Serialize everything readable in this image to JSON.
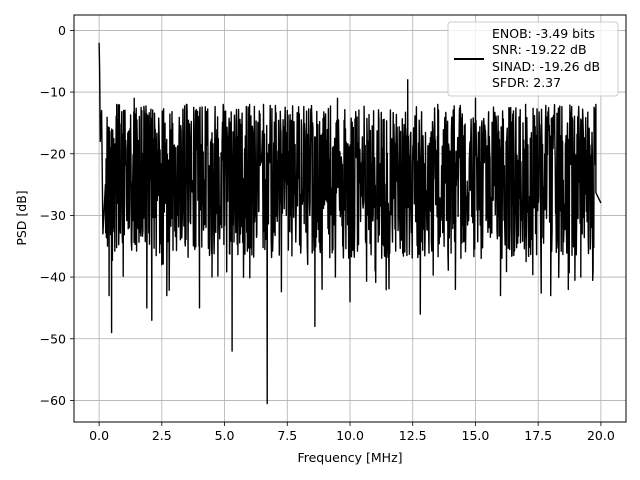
{
  "chart_data": {
    "type": "line",
    "title": "",
    "xlabel": "Frequency [MHz]",
    "ylabel": "PSD [dB]",
    "xlim": [
      -1.0,
      21.0
    ],
    "ylim": [
      -63.5,
      2.5
    ],
    "x_ticks": [
      0.0,
      2.5,
      5.0,
      7.5,
      10.0,
      12.5,
      15.0,
      17.5,
      20.0
    ],
    "x_tick_labels": [
      "0.0",
      "2.5",
      "5.0",
      "7.5",
      "10.0",
      "12.5",
      "15.0",
      "17.5",
      "20.0"
    ],
    "y_ticks": [
      0,
      -10,
      -20,
      -30,
      -40,
      -50,
      -60
    ],
    "y_tick_labels": [
      "0",
      "−10",
      "−20",
      "−30",
      "−40",
      "−50",
      "−60"
    ],
    "grid": true,
    "legend_position": "top-right",
    "series": [
      {
        "name": "",
        "color": "#000000",
        "x": [
          0.0,
          0.02,
          0.05,
          0.1,
          0.15,
          0.25,
          0.4,
          0.45,
          0.5,
          0.7,
          1.0,
          1.4,
          1.9,
          2.1,
          2.7,
          3.5,
          4.0,
          4.5,
          5.3,
          6.0,
          6.7,
          7.5,
          8.6,
          9.5,
          10.0,
          11.0,
          12.3,
          12.8,
          13.5,
          14.2,
          15.0,
          16.0,
          17.0,
          18.0,
          18.7,
          19.2,
          19.8,
          20.0
        ],
        "y": [
          -2,
          -6,
          -18,
          -13,
          -33,
          -25,
          -43,
          -20,
          -49,
          -12,
          -24,
          -11,
          -45,
          -47,
          -43,
          -12,
          -45,
          -40,
          -52,
          -12,
          -60.5,
          -13,
          -48,
          -11,
          -44,
          -39,
          -8,
          -46,
          -12,
          -42,
          -11,
          -43,
          -12,
          -43,
          -42,
          -40,
          -12,
          -28
        ]
      }
    ],
    "legend_entries": [
      "ENOB: -3.49 bits",
      "SNR: -19.22 dB",
      "SINAD: -19.26 dB",
      "SFDR: 2.37"
    ],
    "noise_model": {
      "description": "dense PSD trace, band between approx -10 and -35 dB across 0-20 MHz",
      "upper_dB": -10,
      "lower_dB": -35,
      "mean_dB": -22
    }
  }
}
